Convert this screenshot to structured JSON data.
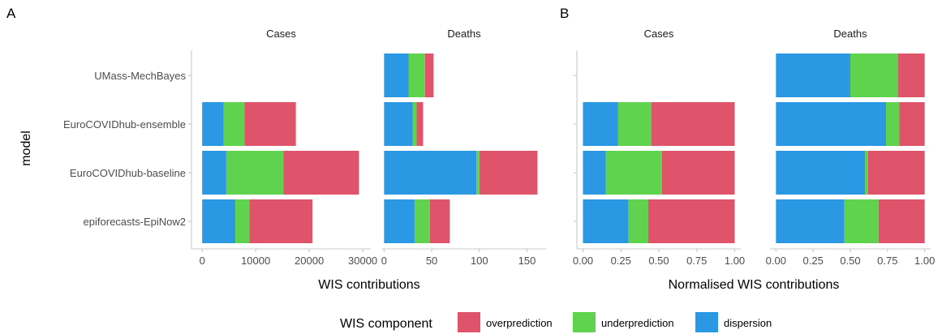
{
  "colors": {
    "overprediction": "#e0546b",
    "underprediction": "#5fd34e",
    "dispersion": "#2a98e3"
  },
  "panel_letters": [
    "A",
    "B"
  ],
  "ylabel": "model",
  "legend": {
    "title": "WIS component",
    "items": [
      {
        "key": "overprediction",
        "label": "overprediction"
      },
      {
        "key": "underprediction",
        "label": "underprediction"
      },
      {
        "key": "dispersion",
        "label": "dispersion"
      }
    ]
  },
  "chart_data": [
    {
      "type": "bar",
      "orientation": "horizontal",
      "stacked": true,
      "panel": "A",
      "xlabel": "WIS contributions",
      "ylabel": "model",
      "categories": [
        "UMass-MechBayes",
        "EuroCOVIDhub-ensemble",
        "EuroCOVIDhub-baseline",
        "epiforecasts-EpiNow2"
      ],
      "facets": [
        {
          "title": "Cases",
          "xlim": [
            -2000,
            31500
          ],
          "xticks": [
            0,
            10000,
            20000,
            30000
          ],
          "xtick_labels": [
            "0",
            "10000",
            "20000",
            "30000"
          ],
          "series": [
            {
              "name": "dispersion",
              "values": [
                null,
                4000,
                4500,
                6200
              ]
            },
            {
              "name": "underprediction",
              "values": [
                null,
                3900,
                10700,
                2600
              ]
            },
            {
              "name": "overprediction",
              "values": [
                null,
                9600,
                14100,
                11800
              ]
            }
          ]
        },
        {
          "title": "Deaths",
          "xlim": [
            -2,
            170
          ],
          "xticks": [
            0,
            50,
            100,
            150
          ],
          "xtick_labels": [
            "0",
            "50",
            "100",
            "150"
          ],
          "series": [
            {
              "name": "dispersion",
              "values": [
                26,
                30,
                97,
                32
              ]
            },
            {
              "name": "underprediction",
              "values": [
                17,
                4,
                3,
                16
              ]
            },
            {
              "name": "overprediction",
              "values": [
                9,
                7,
                61,
                21
              ]
            }
          ]
        }
      ]
    },
    {
      "type": "bar",
      "orientation": "horizontal",
      "stacked": true,
      "panel": "B",
      "xlabel": "Normalised WIS contributions",
      "ylabel": "",
      "categories": [
        "UMass-MechBayes",
        "EuroCOVIDhub-ensemble",
        "EuroCOVIDhub-baseline",
        "epiforecasts-EpiNow2"
      ],
      "facets": [
        {
          "title": "Cases",
          "xlim": [
            -0.04,
            1.04
          ],
          "xticks": [
            0,
            0.25,
            0.5,
            0.75,
            1
          ],
          "xtick_labels": [
            "0.00",
            "0.25",
            "0.50",
            "0.75",
            "1.00"
          ],
          "series": [
            {
              "name": "dispersion",
              "values": [
                null,
                0.23,
                0.15,
                0.3
              ]
            },
            {
              "name": "underprediction",
              "values": [
                null,
                0.22,
                0.37,
                0.13
              ]
            },
            {
              "name": "overprediction",
              "values": [
                null,
                0.55,
                0.48,
                0.57
              ]
            }
          ]
        },
        {
          "title": "Deaths",
          "xlim": [
            -0.04,
            1.04
          ],
          "xticks": [
            0,
            0.25,
            0.5,
            0.75,
            1
          ],
          "xtick_labels": [
            "0.00",
            "0.25",
            "0.50",
            "0.75",
            "1.00"
          ],
          "series": [
            {
              "name": "dispersion",
              "values": [
                0.5,
                0.74,
                0.6,
                0.46
              ]
            },
            {
              "name": "underprediction",
              "values": [
                0.32,
                0.09,
                0.02,
                0.23
              ]
            },
            {
              "name": "overprediction",
              "values": [
                0.18,
                0.17,
                0.38,
                0.31
              ]
            }
          ]
        }
      ]
    }
  ]
}
